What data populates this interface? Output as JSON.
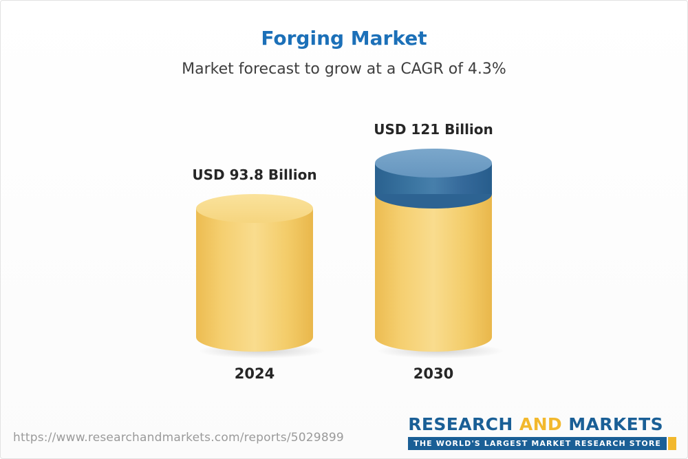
{
  "header": {
    "title": "Forging Market",
    "subtitle": "Market forecast to grow at a CAGR of 4.3%"
  },
  "chart_data": {
    "type": "bar",
    "title": "Forging Market",
    "subtitle": "Market forecast to grow at a CAGR of 4.3%",
    "categories": [
      "2024",
      "2030"
    ],
    "values": [
      93.8,
      121
    ],
    "unit": "USD Billion",
    "data_labels": [
      "USD 93.8 Billion",
      "USD 121 Billion"
    ],
    "ylim": [
      0,
      130
    ],
    "grid": false,
    "legend": false,
    "colors": {
      "base_segment": "#F5CF70",
      "growth_segment": "#3D77A3"
    },
    "notes": "2030 bar shows growth increment over 2024 as a blue cap segment on a 3D cylinder"
  },
  "bars": [
    {
      "label": "USD 93.8 Billion",
      "year": "2024",
      "value": 93.8
    },
    {
      "label": "USD 121 Billion",
      "year": "2030",
      "value": 121
    }
  ],
  "footer": {
    "url": "https://www.researchandmarkets.com/reports/5029899",
    "logo": {
      "word_research": "RESEARCH",
      "word_and": "AND",
      "word_markets": "MARKETS",
      "tagline": "THE WORLD'S LARGEST MARKET RESEARCH STORE"
    }
  }
}
